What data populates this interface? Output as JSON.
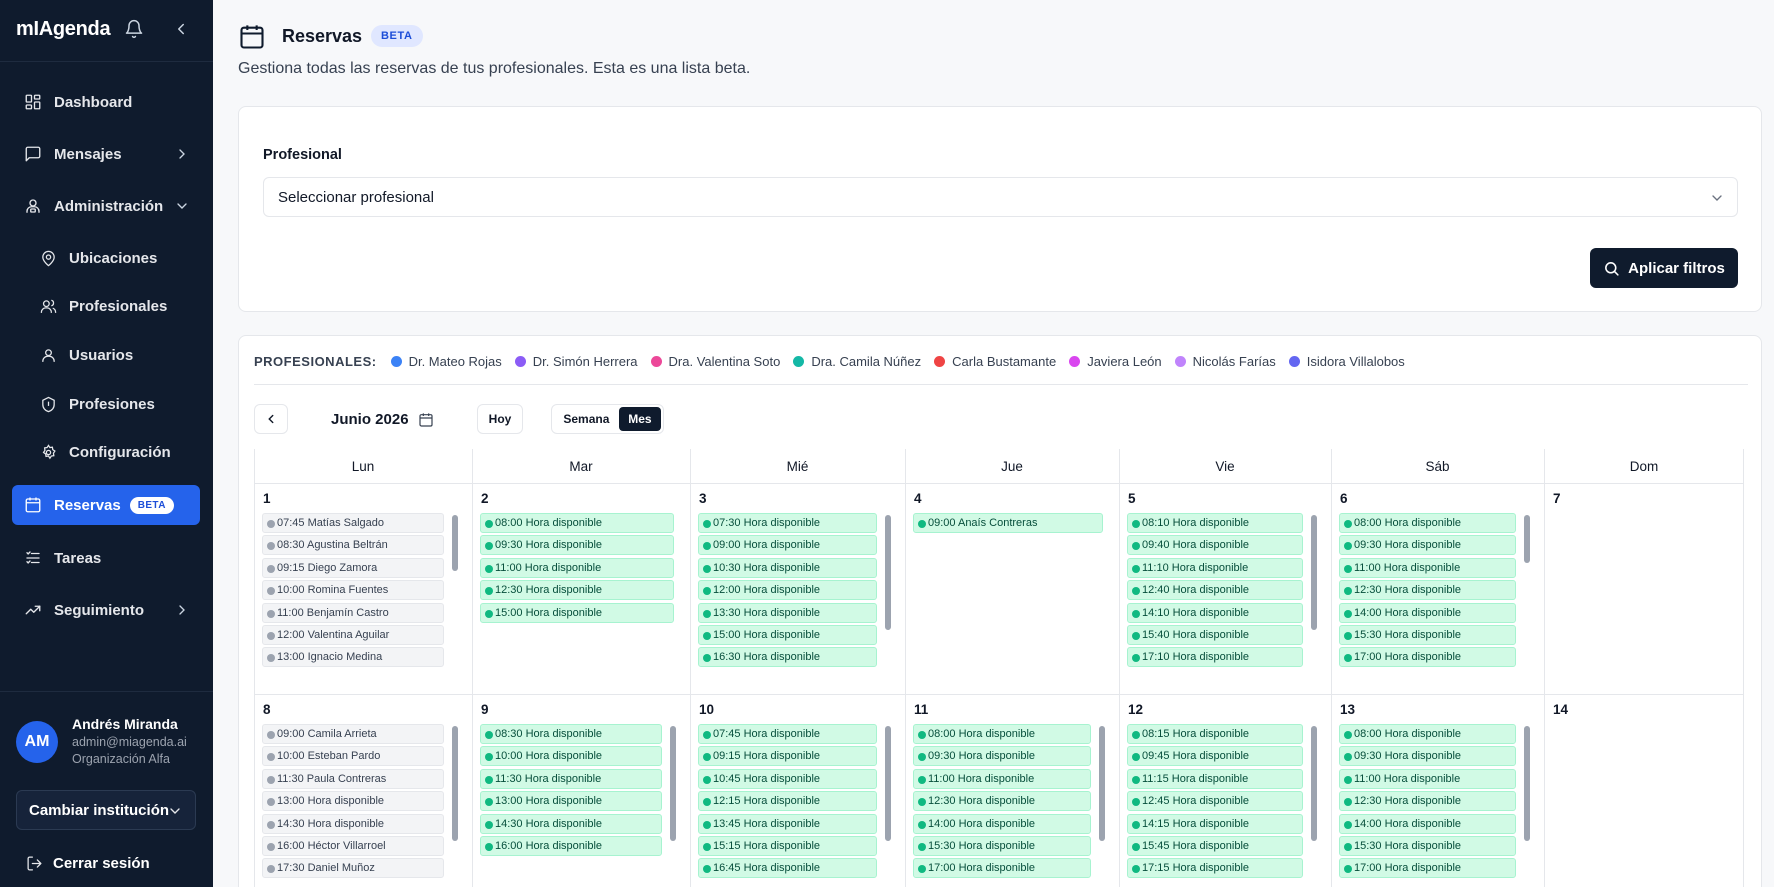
{
  "brand": {
    "name": "mIAgenda"
  },
  "sidebar": {
    "items": [
      {
        "key": "dashboard",
        "label": "Dashboard",
        "icon": "grid-icon"
      },
      {
        "key": "mensajes",
        "label": "Mensajes",
        "icon": "message-icon"
      },
      {
        "key": "administracion",
        "label": "Administración",
        "icon": "admin-icon"
      },
      {
        "key": "ubicaciones",
        "label": "Ubicaciones",
        "icon": "map-pin-icon"
      },
      {
        "key": "profesionales",
        "label": "Profesionales",
        "icon": "users-icon"
      },
      {
        "key": "usuarios",
        "label": "Usuarios",
        "icon": "user-icon"
      },
      {
        "key": "profesiones",
        "label": "Profesiones",
        "icon": "badge-icon"
      },
      {
        "key": "configuracion",
        "label": "Configuración",
        "icon": "gear-icon"
      },
      {
        "key": "reservas",
        "label": "Reservas",
        "badge": "BETA",
        "icon": "calendar-icon"
      },
      {
        "key": "tareas",
        "label": "Tareas",
        "icon": "list-icon"
      },
      {
        "key": "seguimiento",
        "label": "Seguimiento",
        "icon": "trend-icon"
      }
    ]
  },
  "user": {
    "initials": "AM",
    "name": "Andrés Miranda",
    "email": "admin@miagenda.ai",
    "org": "Organización Alfa",
    "switch_label": "Cambiar institución",
    "logout_label": "Cerrar sesión"
  },
  "header": {
    "title": "Reservas",
    "badge": "BETA",
    "subtitle": "Gestiona todas las reservas de tus profesionales. Esta es una lista beta."
  },
  "filters": {
    "label": "Profesional",
    "select_value": "Seleccionar profesional",
    "apply_label": "Aplicar filtros"
  },
  "legend": {
    "title": "PROFESIONALES:",
    "items": [
      {
        "name": "Dr. Mateo Rojas",
        "color": "#3b82f6"
      },
      {
        "name": "Dr. Simón Herrera",
        "color": "#8b5cf6"
      },
      {
        "name": "Dra. Valentina Soto",
        "color": "#ec4899"
      },
      {
        "name": "Dra. Camila Núñez",
        "color": "#14b8a6"
      },
      {
        "name": "Carla Bustamante",
        "color": "#ef4444"
      },
      {
        "name": "Javiera León",
        "color": "#d946ef"
      },
      {
        "name": "Nicolás Farías",
        "color": "#c084fc"
      },
      {
        "name": "Isidora Villalobos",
        "color": "#6366f1"
      }
    ]
  },
  "calendar": {
    "month": "Junio 2026",
    "today_label": "Hoy",
    "week_label": "Semana",
    "month_view_label": "Mes",
    "weekdays": [
      "Lun",
      "Mar",
      "Mié",
      "Jue",
      "Vie",
      "Sáb",
      "Dom"
    ],
    "weeks": [
      [
        {
          "day": "1",
          "events": [
            {
              "text": "07:45 Matías Salgado",
              "kind": "busy"
            },
            {
              "text": "08:30 Agustina Beltrán",
              "kind": "busy"
            },
            {
              "text": "09:15 Diego Zamora",
              "kind": "busy"
            },
            {
              "text": "10:00 Romina Fuentes",
              "kind": "busy"
            },
            {
              "text": "11:00 Benjamín Castro",
              "kind": "busy"
            },
            {
              "text": "12:00 Valentina Aguilar",
              "kind": "busy"
            },
            {
              "text": "13:00 Ignacio Medina",
              "kind": "busy"
            }
          ]
        },
        {
          "day": "2",
          "events": [
            {
              "text": "08:00 Hora disponible",
              "kind": "free"
            },
            {
              "text": "09:30 Hora disponible",
              "kind": "free"
            },
            {
              "text": "11:00 Hora disponible",
              "kind": "free"
            },
            {
              "text": "12:30 Hora disponible",
              "kind": "free"
            },
            {
              "text": "15:00 Hora disponible",
              "kind": "free"
            }
          ]
        },
        {
          "day": "3",
          "events": [
            {
              "text": "07:30 Hora disponible",
              "kind": "free"
            },
            {
              "text": "09:00 Hora disponible",
              "kind": "free"
            },
            {
              "text": "10:30 Hora disponible",
              "kind": "free"
            },
            {
              "text": "12:00 Hora disponible",
              "kind": "free"
            },
            {
              "text": "13:30 Hora disponible",
              "kind": "free"
            },
            {
              "text": "15:00 Hora disponible",
              "kind": "free"
            },
            {
              "text": "16:30 Hora disponible",
              "kind": "free"
            }
          ]
        },
        {
          "day": "4",
          "events": [
            {
              "text": "09:00 Anaís Contreras",
              "kind": "free"
            }
          ]
        },
        {
          "day": "5",
          "events": [
            {
              "text": "08:10 Hora disponible",
              "kind": "free"
            },
            {
              "text": "09:40 Hora disponible",
              "kind": "free"
            },
            {
              "text": "11:10 Hora disponible",
              "kind": "free"
            },
            {
              "text": "12:40 Hora disponible",
              "kind": "free"
            },
            {
              "text": "14:10 Hora disponible",
              "kind": "free"
            },
            {
              "text": "15:40 Hora disponible",
              "kind": "free"
            },
            {
              "text": "17:10 Hora disponible",
              "kind": "free"
            }
          ]
        },
        {
          "day": "6",
          "events": [
            {
              "text": "08:00 Hora disponible",
              "kind": "free"
            },
            {
              "text": "09:30 Hora disponible",
              "kind": "free"
            },
            {
              "text": "11:00 Hora disponible",
              "kind": "free"
            },
            {
              "text": "12:30 Hora disponible",
              "kind": "free"
            },
            {
              "text": "14:00 Hora disponible",
              "kind": "free"
            },
            {
              "text": "15:30 Hora disponible",
              "kind": "free"
            },
            {
              "text": "17:00 Hora disponible",
              "kind": "free"
            }
          ]
        },
        {
          "day": "7",
          "events": []
        }
      ],
      [
        {
          "day": "8",
          "events": [
            {
              "text": "09:00 Camila Arrieta",
              "kind": "busy"
            },
            {
              "text": "10:00 Esteban Pardo",
              "kind": "busy"
            },
            {
              "text": "11:30 Paula Contreras",
              "kind": "busy"
            },
            {
              "text": "13:00 Hora disponible",
              "kind": "busy"
            },
            {
              "text": "14:30 Hora disponible",
              "kind": "busy"
            },
            {
              "text": "16:00 Héctor Villarroel",
              "kind": "busy"
            },
            {
              "text": "17:30 Daniel Muñoz",
              "kind": "busy"
            }
          ]
        },
        {
          "day": "9",
          "events": [
            {
              "text": "08:30 Hora disponible",
              "kind": "free"
            },
            {
              "text": "10:00 Hora disponible",
              "kind": "free"
            },
            {
              "text": "11:30 Hora disponible",
              "kind": "free"
            },
            {
              "text": "13:00 Hora disponible",
              "kind": "free"
            },
            {
              "text": "14:30 Hora disponible",
              "kind": "free"
            },
            {
              "text": "16:00 Hora disponible",
              "kind": "free"
            }
          ]
        },
        {
          "day": "10",
          "events": [
            {
              "text": "07:45 Hora disponible",
              "kind": "free"
            },
            {
              "text": "09:15 Hora disponible",
              "kind": "free"
            },
            {
              "text": "10:45 Hora disponible",
              "kind": "free"
            },
            {
              "text": "12:15 Hora disponible",
              "kind": "free"
            },
            {
              "text": "13:45 Hora disponible",
              "kind": "free"
            },
            {
              "text": "15:15 Hora disponible",
              "kind": "free"
            },
            {
              "text": "16:45 Hora disponible",
              "kind": "free"
            }
          ]
        },
        {
          "day": "11",
          "events": [
            {
              "text": "08:00 Hora disponible",
              "kind": "free"
            },
            {
              "text": "09:30 Hora disponible",
              "kind": "free"
            },
            {
              "text": "11:00 Hora disponible",
              "kind": "free"
            },
            {
              "text": "12:30 Hora disponible",
              "kind": "free"
            },
            {
              "text": "14:00 Hora disponible",
              "kind": "free"
            },
            {
              "text": "15:30 Hora disponible",
              "kind": "free"
            },
            {
              "text": "17:00 Hora disponible",
              "kind": "free"
            }
          ]
        },
        {
          "day": "12",
          "events": [
            {
              "text": "08:15 Hora disponible",
              "kind": "free"
            },
            {
              "text": "09:45 Hora disponible",
              "kind": "free"
            },
            {
              "text": "11:15 Hora disponible",
              "kind": "free"
            },
            {
              "text": "12:45 Hora disponible",
              "kind": "free"
            },
            {
              "text": "14:15 Hora disponible",
              "kind": "free"
            },
            {
              "text": "15:45 Hora disponible",
              "kind": "free"
            },
            {
              "text": "17:15 Hora disponible",
              "kind": "free"
            }
          ]
        },
        {
          "day": "13",
          "events": [
            {
              "text": "08:00 Hora disponible",
              "kind": "free"
            },
            {
              "text": "09:30 Hora disponible",
              "kind": "free"
            },
            {
              "text": "11:00 Hora disponible",
              "kind": "free"
            },
            {
              "text": "12:30 Hora disponible",
              "kind": "free"
            },
            {
              "text": "14:00 Hora disponible",
              "kind": "free"
            },
            {
              "text": "15:30 Hora disponible",
              "kind": "free"
            },
            {
              "text": "17:00 Hora disponible",
              "kind": "free"
            }
          ]
        },
        {
          "day": "14",
          "events": []
        }
      ]
    ]
  }
}
